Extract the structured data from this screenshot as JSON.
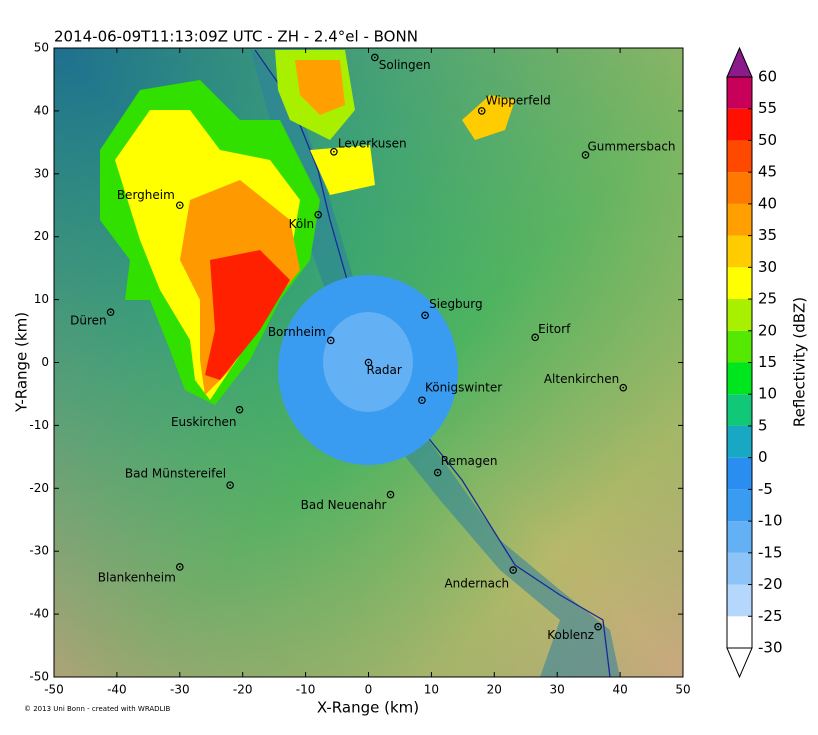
{
  "chart_data": {
    "type": "radar-map",
    "title": "2014-06-09T11:13:09Z UTC - ZH - 2.4°el - BONN",
    "x_label": "X-Range (km)",
    "y_label": "Y-Range (km)",
    "credit": "© 2013 Uni Bonn - created with WRADLIB",
    "xlim": [
      -50,
      50
    ],
    "ylim": [
      -50,
      50
    ],
    "xticks": [
      -50,
      -40,
      -30,
      -20,
      -10,
      0,
      10,
      20,
      30,
      40,
      50
    ],
    "yticks": [
      -50,
      -40,
      -30,
      -20,
      -10,
      0,
      10,
      20,
      30,
      40,
      50
    ],
    "points": [
      {
        "name": "Solingen",
        "x": 1,
        "y": 48.5
      },
      {
        "name": "Wipperfeld",
        "x": 18,
        "y": 40
      },
      {
        "name": "Gummersbach",
        "x": 34.5,
        "y": 33
      },
      {
        "name": "Leverkusen",
        "x": -5.5,
        "y": 33.5
      },
      {
        "name": "Bergheim",
        "x": -30,
        "y": 25
      },
      {
        "name": "Köln",
        "x": -8,
        "y": 23.5
      },
      {
        "name": "Siegburg",
        "x": 9,
        "y": 7.5
      },
      {
        "name": "Eitorf",
        "x": 26.5,
        "y": 4
      },
      {
        "name": "Düren",
        "x": -41,
        "y": 8
      },
      {
        "name": "Bornheim",
        "x": -6,
        "y": 3.5
      },
      {
        "name": "Radar",
        "x": 0,
        "y": 0
      },
      {
        "name": "Königswinter",
        "x": 8.5,
        "y": -6
      },
      {
        "name": "Altenkirchen",
        "x": 40.5,
        "y": -4
      },
      {
        "name": "Euskirchen",
        "x": -20.5,
        "y": -7.5
      },
      {
        "name": "Remagen",
        "x": 11,
        "y": -17.5
      },
      {
        "name": "Bad Münstereifel",
        "x": -22,
        "y": -19.5
      },
      {
        "name": "Bad Neuenahr",
        "x": 3.5,
        "y": -21
      },
      {
        "name": "Blankenheim",
        "x": -30,
        "y": -32.5
      },
      {
        "name": "Andernach",
        "x": 23,
        "y": -33
      },
      {
        "name": "Koblenz",
        "x": 36.5,
        "y": -42
      }
    ],
    "colorbar": {
      "label": "Reflectivity (dBZ)",
      "levels": [
        -30,
        -25,
        -20,
        -15,
        -10,
        -5,
        0,
        5,
        10,
        15,
        20,
        25,
        30,
        35,
        40,
        45,
        50,
        55,
        60
      ],
      "colors": [
        "#ffffff",
        "#b4d7fb",
        "#8cc4f8",
        "#64b0f5",
        "#3a9cf0",
        "#2a8ef0",
        "#18a8c4",
        "#10c878",
        "#00e61e",
        "#55e800",
        "#a8f000",
        "#ffff00",
        "#ffcc00",
        "#ff9f00",
        "#ff7800",
        "#ff4800",
        "#ff1000",
        "#c8005a"
      ],
      "under_color": "#ffffff",
      "over_color": "#8b1a8b"
    }
  }
}
